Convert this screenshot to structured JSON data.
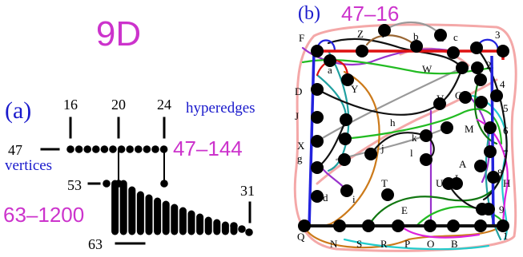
{
  "title": "9D",
  "left_panel": {
    "label": "(a)",
    "hyperedges_label": "hyperedges",
    "vertices_label": "vertices",
    "hyperedge_range": "47–144",
    "vertex_range": "63–1200",
    "numbers": {
      "top1": "16",
      "top2": "20",
      "top3": "24",
      "left1": "47",
      "left2": "53",
      "right": "31",
      "bottom": "63"
    }
  },
  "right_panel": {
    "label": "(b)",
    "count": "47–16",
    "labels": [
      "F",
      "Z",
      "I",
      "b",
      "K",
      "c",
      "3",
      "a",
      "Y",
      "2",
      "W",
      "4",
      "D",
      "G",
      "5",
      "V",
      "J",
      "f",
      "h",
      "M",
      "6",
      "X",
      "k",
      "j",
      "l",
      "7",
      "g",
      "e",
      "A",
      "8",
      "L",
      "H",
      "U",
      "T",
      "d",
      "i",
      "9",
      "E",
      "Q",
      "N",
      "S",
      "R",
      "P",
      "O",
      "B",
      "1"
    ]
  },
  "colors": {
    "title": "#cc33cc",
    "panel_label": "#1a1acc",
    "accent_blue": "#2222dd"
  }
}
